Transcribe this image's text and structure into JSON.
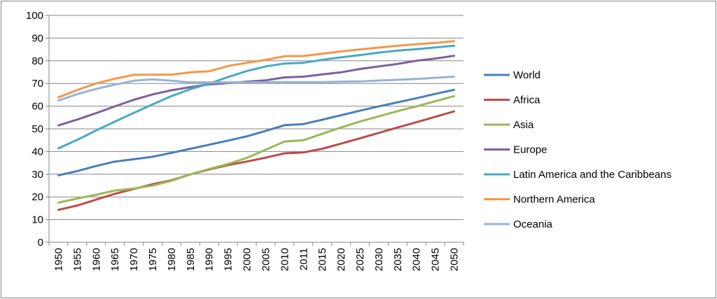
{
  "chart_data": {
    "type": "line",
    "title": "",
    "xlabel": "",
    "ylabel": "",
    "ylim": [
      0,
      100
    ],
    "yticks": [
      0,
      10,
      20,
      30,
      40,
      50,
      60,
      70,
      80,
      90,
      100
    ],
    "grid": true,
    "legend_position": "right",
    "categories": [
      "1950",
      "1955",
      "1960",
      "1965",
      "1970",
      "1975",
      "1980",
      "1985",
      "1990",
      "1995",
      "2000",
      "2005",
      "2010",
      "2011",
      "2015",
      "2020",
      "2025",
      "2030",
      "2035",
      "2040",
      "2045",
      "2050"
    ],
    "series": [
      {
        "name": "World",
        "color": "#4a7ebb",
        "values": [
          29.5,
          31.4,
          33.6,
          35.6,
          36.6,
          37.7,
          39.4,
          41.2,
          43.0,
          44.8,
          46.7,
          49.1,
          51.6,
          52.1,
          54.0,
          56.0,
          58.0,
          59.9,
          61.7,
          63.5,
          65.4,
          67.2
        ]
      },
      {
        "name": "Africa",
        "color": "#be4b48",
        "values": [
          14.3,
          16.2,
          18.8,
          21.4,
          23.5,
          25.6,
          27.3,
          29.9,
          32.1,
          34.0,
          35.6,
          37.3,
          39.2,
          39.6,
          41.2,
          43.5,
          45.8,
          48.2,
          50.6,
          52.9,
          55.3,
          57.7
        ]
      },
      {
        "name": "Asia",
        "color": "#98b954",
        "values": [
          17.5,
          19.3,
          21.0,
          22.8,
          23.7,
          25.0,
          27.1,
          29.9,
          32.3,
          34.5,
          37.2,
          40.8,
          44.4,
          45.0,
          47.8,
          50.6,
          53.2,
          55.5,
          57.8,
          59.9,
          62.2,
          64.4
        ]
      },
      {
        "name": "Europe",
        "color": "#7d60a0",
        "values": [
          51.5,
          54.1,
          56.9,
          59.9,
          62.8,
          65.2,
          67.0,
          68.4,
          69.6,
          70.2,
          70.8,
          71.4,
          72.7,
          73.0,
          74.0,
          74.9,
          76.4,
          77.5,
          78.6,
          80.0,
          81.0,
          82.2
        ]
      },
      {
        "name": "Latin America and the Caribbeans",
        "color": "#46aac5",
        "values": [
          41.4,
          45.2,
          49.3,
          53.2,
          57.0,
          60.8,
          64.4,
          67.5,
          69.9,
          72.8,
          75.5,
          77.5,
          78.8,
          79.1,
          80.4,
          81.5,
          82.5,
          83.6,
          84.5,
          85.1,
          85.9,
          86.6
        ]
      },
      {
        "name": "Northern America",
        "color": "#f79646",
        "values": [
          63.9,
          67.1,
          70.0,
          72.1,
          73.8,
          73.9,
          73.9,
          74.9,
          75.4,
          77.7,
          79.1,
          80.4,
          82.0,
          82.1,
          83.1,
          84.1,
          85.0,
          85.8,
          86.6,
          87.3,
          87.9,
          88.6
        ]
      },
      {
        "name": "Oceania",
        "color": "#95b3d7",
        "values": [
          62.5,
          65.3,
          67.6,
          69.5,
          71.2,
          71.8,
          71.2,
          70.5,
          70.5,
          70.5,
          70.5,
          70.5,
          70.6,
          70.6,
          70.6,
          70.8,
          70.9,
          71.3,
          71.6,
          72.0,
          72.5,
          73.0
        ]
      }
    ]
  }
}
